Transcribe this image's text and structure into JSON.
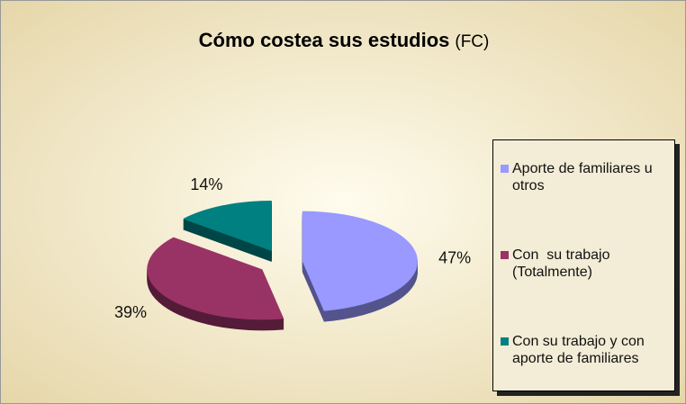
{
  "chart_data": {
    "type": "pie",
    "title": "Cómo costea sus estudios",
    "subtitle": "(FC)",
    "categories": [
      "Aporte de familiares u otros",
      "Con  su trabajo (Totalmente)",
      "Con su trabajo y con aporte de familiares"
    ],
    "values": [
      47,
      39,
      14
    ],
    "value_labels": [
      "47%",
      "39%",
      "14%"
    ],
    "colors": [
      "#9999ff",
      "#993366",
      "#008080"
    ],
    "legend": "right"
  }
}
